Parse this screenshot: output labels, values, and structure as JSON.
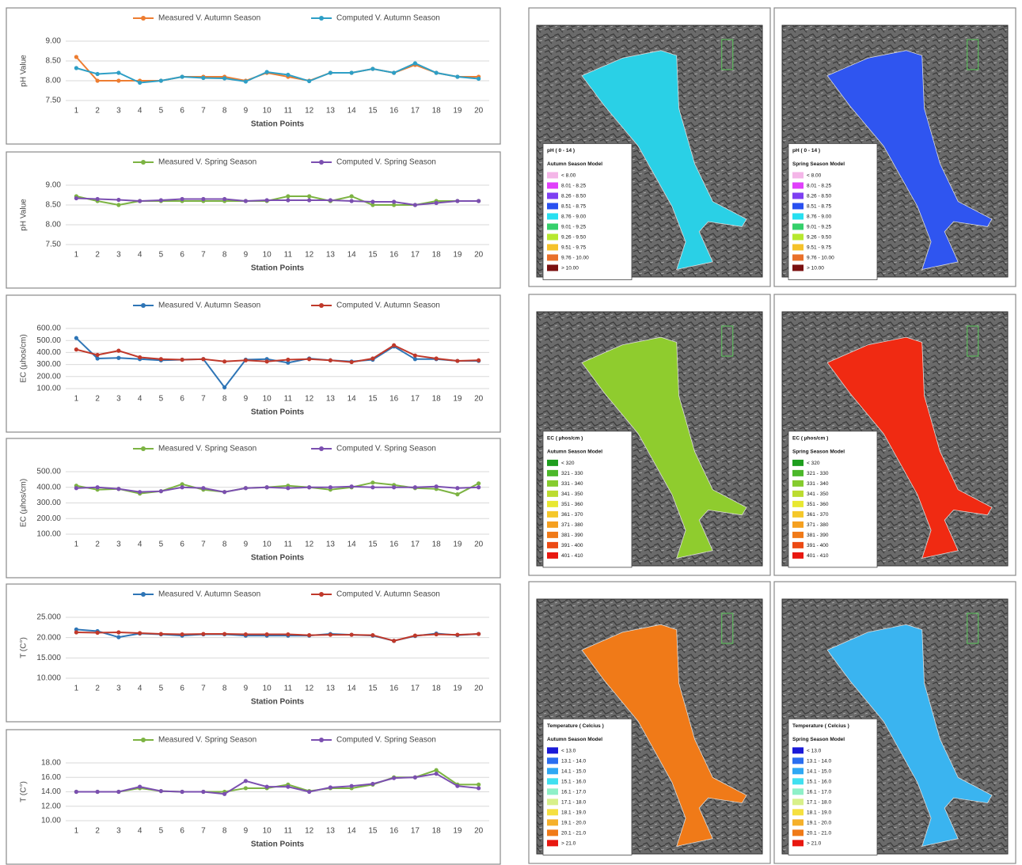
{
  "chart_data": [
    {
      "type": "line",
      "x_label": "Station Points",
      "y_label": "pH Value",
      "categories": [
        "1",
        "2",
        "3",
        "4",
        "5",
        "6",
        "7",
        "8",
        "9",
        "10",
        "11",
        "12",
        "13",
        "14",
        "15",
        "16",
        "17",
        "18",
        "19",
        "20"
      ],
      "series": [
        {
          "name": "Measured V. Autumn Season",
          "color": "#ed7d31",
          "values": [
            8.6,
            8.0,
            8.0,
            8.0,
            8.0,
            8.1,
            8.1,
            8.1,
            8.0,
            8.2,
            8.1,
            8.0,
            8.2,
            8.2,
            8.3,
            8.2,
            8.4,
            8.2,
            8.1,
            8.1
          ]
        },
        {
          "name": "Computed V. Autumn Season",
          "color": "#2e9fc6",
          "values": [
            8.32,
            8.17,
            8.2,
            7.95,
            8.0,
            8.1,
            8.07,
            8.06,
            7.98,
            8.22,
            8.15,
            7.99,
            8.2,
            8.2,
            8.3,
            8.2,
            8.44,
            8.2,
            8.1,
            8.05
          ]
        }
      ],
      "ylim": [
        7.5,
        9.0
      ],
      "yticks": [
        {
          "value": 7.5,
          "label": "7.50"
        },
        {
          "value": 8.0,
          "label": "8.00"
        },
        {
          "value": 8.5,
          "label": "8.50"
        },
        {
          "value": 9.0,
          "label": "9.00"
        }
      ],
      "grid": true
    },
    {
      "type": "line",
      "x_label": "Station Points",
      "y_label": "pH Value",
      "categories": [
        "1",
        "2",
        "3",
        "4",
        "5",
        "6",
        "7",
        "8",
        "9",
        "10",
        "11",
        "12",
        "13",
        "14",
        "15",
        "16",
        "17",
        "18",
        "19",
        "20"
      ],
      "series": [
        {
          "name": "Measured V. Spring Season",
          "color": "#7cb342",
          "values": [
            8.72,
            8.6,
            8.5,
            8.6,
            8.6,
            8.6,
            8.6,
            8.6,
            8.6,
            8.6,
            8.72,
            8.72,
            8.6,
            8.72,
            8.5,
            8.5,
            8.5,
            8.6,
            8.6,
            8.6
          ]
        },
        {
          "name": "Computed V. Spring Season",
          "color": "#7b4fb0",
          "values": [
            8.67,
            8.65,
            8.63,
            8.6,
            8.62,
            8.65,
            8.65,
            8.65,
            8.6,
            8.62,
            8.62,
            8.62,
            8.62,
            8.6,
            8.58,
            8.58,
            8.5,
            8.55,
            8.6,
            8.6
          ]
        }
      ],
      "ylim": [
        7.5,
        9.0
      ],
      "yticks": [
        {
          "value": 7.5,
          "label": "7.50"
        },
        {
          "value": 8.0,
          "label": "8.00"
        },
        {
          "value": 8.5,
          "label": "8.50"
        },
        {
          "value": 9.0,
          "label": "9.00"
        }
      ],
      "grid": true
    },
    {
      "type": "line",
      "x_label": "Station Points",
      "y_label": "EC (µhos/cm)",
      "categories": [
        "1",
        "2",
        "3",
        "4",
        "5",
        "6",
        "7",
        "8",
        "9",
        "10",
        "11",
        "12",
        "13",
        "14",
        "15",
        "16",
        "17",
        "18",
        "19",
        "20"
      ],
      "series": [
        {
          "name": "Measured V. Autumn Season",
          "color": "#2e75b6",
          "values": [
            520,
            350,
            355,
            345,
            335,
            340,
            345,
            110,
            340,
            345,
            315,
            350,
            335,
            325,
            340,
            450,
            345,
            345,
            330,
            330
          ]
        },
        {
          "name": "Computed V. Autumn Season",
          "color": "#c0392b",
          "values": [
            425,
            380,
            415,
            360,
            345,
            340,
            345,
            325,
            335,
            325,
            340,
            345,
            335,
            320,
            350,
            460,
            375,
            350,
            330,
            335
          ]
        }
      ],
      "ylim": [
        100,
        600
      ],
      "yticks": [
        {
          "value": 100,
          "label": "100.00"
        },
        {
          "value": 200,
          "label": "200.00"
        },
        {
          "value": 300,
          "label": "300.00"
        },
        {
          "value": 400,
          "label": "400.00"
        },
        {
          "value": 500,
          "label": "500.00"
        },
        {
          "value": 600,
          "label": "600.00"
        }
      ],
      "grid": true
    },
    {
      "type": "line",
      "x_label": "Station Points",
      "y_label": "EC (µhos/cm)",
      "categories": [
        "1",
        "2",
        "3",
        "4",
        "5",
        "6",
        "7",
        "8",
        "9",
        "10",
        "11",
        "12",
        "13",
        "14",
        "15",
        "16",
        "17",
        "18",
        "19",
        "20"
      ],
      "series": [
        {
          "name": "Measured V. Spring Season",
          "color": "#7cb342",
          "values": [
            410,
            385,
            390,
            360,
            375,
            420,
            385,
            370,
            395,
            400,
            410,
            400,
            385,
            400,
            430,
            415,
            395,
            390,
            355,
            425
          ]
        },
        {
          "name": "Computed V. Spring Season",
          "color": "#7b4fb0",
          "values": [
            395,
            400,
            390,
            370,
            375,
            400,
            395,
            370,
            395,
            400,
            395,
            400,
            400,
            405,
            400,
            400,
            400,
            405,
            395,
            400
          ]
        }
      ],
      "ylim": [
        100,
        500
      ],
      "yticks": [
        {
          "value": 100,
          "label": "100.00"
        },
        {
          "value": 200,
          "label": "200.00"
        },
        {
          "value": 300,
          "label": "300.00"
        },
        {
          "value": 400,
          "label": "400.00"
        },
        {
          "value": 500,
          "label": "500.00"
        }
      ],
      "grid": true
    },
    {
      "type": "line",
      "x_label": "Station Points",
      "y_label": "T (C°)",
      "categories": [
        "1",
        "2",
        "3",
        "4",
        "5",
        "6",
        "7",
        "8",
        "9",
        "10",
        "11",
        "12",
        "13",
        "14",
        "15",
        "16",
        "17",
        "18",
        "19",
        "20"
      ],
      "series": [
        {
          "name": "Measured V. Autumn Season",
          "color": "#2e75b6",
          "values": [
            22,
            21.6,
            20.1,
            21,
            20.8,
            20.5,
            20.8,
            20.8,
            20.5,
            20.5,
            20.5,
            20.5,
            20.9,
            20.7,
            20.5,
            19.2,
            20.4,
            21,
            20.6,
            20.9
          ]
        },
        {
          "name": "Computed V. Autumn Season",
          "color": "#c0392b",
          "values": [
            21.3,
            21.2,
            21.3,
            21.1,
            20.9,
            20.8,
            20.9,
            20.9,
            20.8,
            20.8,
            20.8,
            20.6,
            20.7,
            20.7,
            20.6,
            19.2,
            20.5,
            20.8,
            20.7,
            20.9
          ]
        }
      ],
      "ylim": [
        10,
        25
      ],
      "yticks": [
        {
          "value": 10,
          "label": "10.000"
        },
        {
          "value": 15,
          "label": "15.000"
        },
        {
          "value": 20,
          "label": "20.000"
        },
        {
          "value": 25,
          "label": "25.000"
        }
      ],
      "grid": true
    },
    {
      "type": "line",
      "x_label": "Station Points",
      "y_label": "T (C°)",
      "categories": [
        "1",
        "2",
        "3",
        "4",
        "5",
        "6",
        "7",
        "8",
        "9",
        "10",
        "11",
        "12",
        "13",
        "14",
        "15",
        "16",
        "17",
        "18",
        "19",
        "20"
      ],
      "series": [
        {
          "name": "Measured V. Spring Season",
          "color": "#7cb342",
          "values": [
            14,
            14,
            14,
            14.5,
            14.1,
            14,
            14,
            14,
            14.5,
            14.5,
            15,
            14.1,
            14.5,
            14.5,
            15,
            16,
            16,
            17,
            15,
            15
          ]
        },
        {
          "name": "Computed V. Spring Season",
          "color": "#7b4fb0",
          "values": [
            14,
            14,
            14,
            14.7,
            14.1,
            14,
            14,
            13.7,
            15.5,
            14.7,
            14.7,
            14,
            14.6,
            14.8,
            15.1,
            15.9,
            16,
            16.5,
            14.8,
            14.5
          ]
        }
      ],
      "ylim": [
        10,
        18
      ],
      "yticks": [
        {
          "value": 10,
          "label": "10.00"
        },
        {
          "value": 12,
          "label": "12.00"
        },
        {
          "value": 14,
          "label": "14.00"
        },
        {
          "value": 16,
          "label": "16.00"
        },
        {
          "value": 18,
          "label": "18.00"
        }
      ],
      "grid": true
    }
  ],
  "maps": [
    {
      "legend_title": "pH ( 0 - 14 )",
      "model": "Autumn Season Model",
      "lake_color": "#2ad0e6",
      "legend": [
        {
          "label": "< 8.00",
          "color": "#f4b6e8"
        },
        {
          "label": "8.01 - 8.25",
          "color": "#e040fb"
        },
        {
          "label": "8.26 - 8.50",
          "color": "#7e3ff2"
        },
        {
          "label": "8.51 - 8.75",
          "color": "#2950f0"
        },
        {
          "label": "8.76 - 9.00",
          "color": "#27e0f0"
        },
        {
          "label": "9.01 - 9.25",
          "color": "#35d06b"
        },
        {
          "label": "9.26 - 9.50",
          "color": "#b7e82f"
        },
        {
          "label": "9.51 - 9.75",
          "color": "#f5c22a"
        },
        {
          "label": "9.76 - 10.00",
          "color": "#e9702a"
        },
        {
          "label": "> 10.00",
          "color": "#7a1010"
        }
      ]
    },
    {
      "legend_title": "pH ( 0 - 14 )",
      "model": "Spring Season Model",
      "lake_color": "#2f55f0",
      "legend": [
        {
          "label": "< 8.00",
          "color": "#f4b6e8"
        },
        {
          "label": "8.01 - 8.25",
          "color": "#e040fb"
        },
        {
          "label": "8.26 - 8.50",
          "color": "#7e3ff2"
        },
        {
          "label": "8.51 - 8.75",
          "color": "#2950f0"
        },
        {
          "label": "8.76 - 9.00",
          "color": "#27e0f0"
        },
        {
          "label": "9.01 - 9.25",
          "color": "#35d06b"
        },
        {
          "label": "9.26 - 9.50",
          "color": "#b7e82f"
        },
        {
          "label": "9.51 - 9.75",
          "color": "#f5c22a"
        },
        {
          "label": "9.76 - 10.00",
          "color": "#e9702a"
        },
        {
          "label": "> 10.00",
          "color": "#7a1010"
        }
      ]
    },
    {
      "legend_title": "EC ( µhos/cm )",
      "model": "Autumn Season Model",
      "lake_color": "#8fcc2e",
      "legend": [
        {
          "label": "< 320",
          "color": "#1e9e1e"
        },
        {
          "label": "321 - 330",
          "color": "#4cb82a"
        },
        {
          "label": "331 - 340",
          "color": "#86cc2e"
        },
        {
          "label": "341 - 350",
          "color": "#bcdc30"
        },
        {
          "label": "351 - 360",
          "color": "#e8e832"
        },
        {
          "label": "361 - 370",
          "color": "#f5c82a"
        },
        {
          "label": "371 - 380",
          "color": "#f5a020"
        },
        {
          "label": "381 - 390",
          "color": "#f07a18"
        },
        {
          "label": "391 - 400",
          "color": "#ec4a14"
        },
        {
          "label": "401 - 410",
          "color": "#e81810"
        }
      ]
    },
    {
      "legend_title": "EC ( µhos/cm )",
      "model": "Spring Season Model",
      "lake_color": "#f02a12",
      "legend": [
        {
          "label": "< 320",
          "color": "#1e9e1e"
        },
        {
          "label": "321 - 330",
          "color": "#4cb82a"
        },
        {
          "label": "331 - 340",
          "color": "#86cc2e"
        },
        {
          "label": "341 - 350",
          "color": "#bcdc30"
        },
        {
          "label": "351 - 360",
          "color": "#e8e832"
        },
        {
          "label": "361 - 370",
          "color": "#f5c82a"
        },
        {
          "label": "371 - 380",
          "color": "#f5a020"
        },
        {
          "label": "381 - 390",
          "color": "#f07a18"
        },
        {
          "label": "391 - 400",
          "color": "#ec4a14"
        },
        {
          "label": "401 - 410",
          "color": "#e81810"
        }
      ]
    },
    {
      "legend_title": "Temperature ( Celcius )",
      "model": "Autumn Season Model",
      "lake_color": "#f07a18",
      "legend": [
        {
          "label": "< 13.0",
          "color": "#1a1ad8"
        },
        {
          "label": "13.1 - 14.0",
          "color": "#2a6ef0"
        },
        {
          "label": "14.1 - 15.0",
          "color": "#2ea8f4"
        },
        {
          "label": "15.1 - 16.0",
          "color": "#40e0f0"
        },
        {
          "label": "16.1 - 17.0",
          "color": "#8ef0c8"
        },
        {
          "label": "17.1 - 18.0",
          "color": "#d8f08a"
        },
        {
          "label": "18.1 - 19.0",
          "color": "#f5e040"
        },
        {
          "label": "19.1 - 20.0",
          "color": "#f5b02a"
        },
        {
          "label": "20.1 - 21.0",
          "color": "#f07a18"
        },
        {
          "label": "> 21.0",
          "color": "#e81810"
        }
      ]
    },
    {
      "legend_title": "Temperature ( Celcius )",
      "model": "Spring Season Model",
      "lake_color": "#3ab4f0",
      "legend": [
        {
          "label": "< 13.0",
          "color": "#1a1ad8"
        },
        {
          "label": "13.1 - 14.0",
          "color": "#2a6ef0"
        },
        {
          "label": "14.1 - 15.0",
          "color": "#2ea8f4"
        },
        {
          "label": "15.1 - 16.0",
          "color": "#40e0f0"
        },
        {
          "label": "16.1 - 17.0",
          "color": "#8ef0c8"
        },
        {
          "label": "17.1 - 18.0",
          "color": "#d8f08a"
        },
        {
          "label": "18.1 - 19.0",
          "color": "#f5e040"
        },
        {
          "label": "19.1 - 20.0",
          "color": "#f5b02a"
        },
        {
          "label": "20.1 - 21.0",
          "color": "#f07a18"
        },
        {
          "label": "> 21.0",
          "color": "#e81810"
        }
      ]
    }
  ]
}
